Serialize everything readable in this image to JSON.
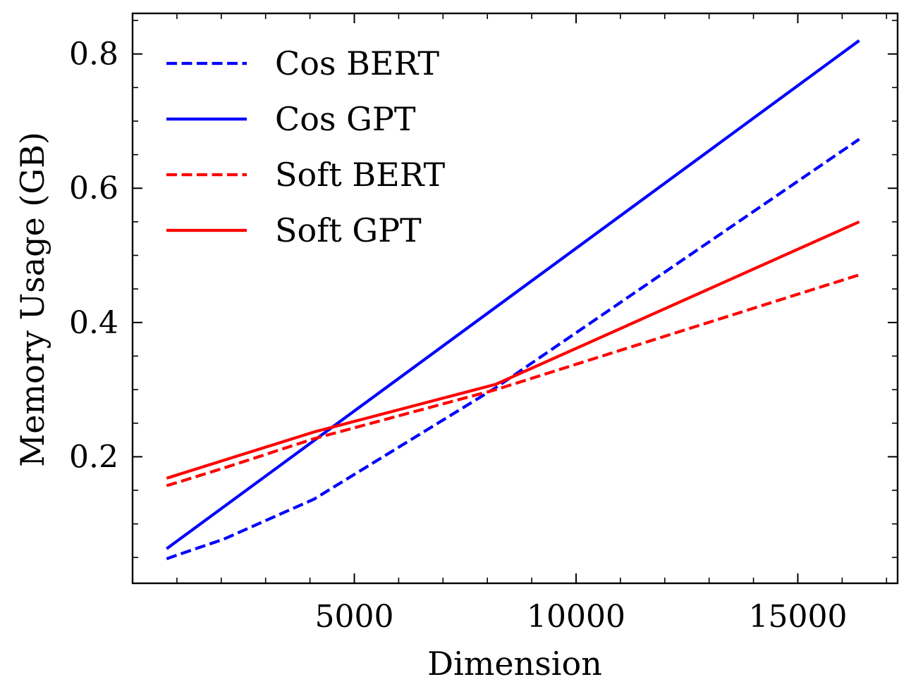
{
  "chart_data": {
    "type": "line",
    "title": "",
    "xlabel": "Dimension",
    "ylabel": "Memory Usage (GB)",
    "xlim": [
      0,
      17250
    ],
    "ylim": [
      0.0115,
      0.8605
    ],
    "x_ticks_major": [
      5000,
      10000,
      15000
    ],
    "x_ticks_minor": [
      1000,
      2000,
      3000,
      4000,
      6000,
      7000,
      8000,
      9000,
      11000,
      12000,
      13000,
      14000,
      16000,
      17000
    ],
    "y_ticks_major": [
      0.2,
      0.4,
      0.6,
      0.8
    ],
    "y_ticks_minor": [
      0.05,
      0.1,
      0.15,
      0.25,
      0.3,
      0.35,
      0.45,
      0.5,
      0.55,
      0.65,
      0.7,
      0.75,
      0.85
    ],
    "x_tick_labels": [
      "5000",
      "10000",
      "15000"
    ],
    "y_tick_labels": [
      "0.2",
      "0.4",
      "0.6",
      "0.8"
    ],
    "grid": false,
    "legend_position": "top-left",
    "series": [
      {
        "name": "Cos BERT",
        "color": "#0000ff",
        "style": "dashed",
        "x": [
          768,
          1024,
          2048,
          4096,
          8192,
          16384
        ],
        "y": [
          0.048,
          0.054,
          0.077,
          0.137,
          0.303,
          0.673
        ]
      },
      {
        "name": "Cos GPT",
        "color": "#0000ff",
        "style": "solid",
        "x": [
          768,
          16384
        ],
        "y": [
          0.063,
          0.82
        ]
      },
      {
        "name": "Soft BERT",
        "color": "#ff0000",
        "style": "dashed",
        "x": [
          768,
          1024,
          2048,
          4096,
          8192,
          16384
        ],
        "y": [
          0.157,
          0.162,
          0.183,
          0.227,
          0.3,
          0.471
        ]
      },
      {
        "name": "Soft GPT",
        "color": "#ff0000",
        "style": "solid",
        "x": [
          768,
          4096,
          8192,
          16384
        ],
        "y": [
          0.168,
          0.237,
          0.308,
          0.55
        ]
      }
    ]
  }
}
